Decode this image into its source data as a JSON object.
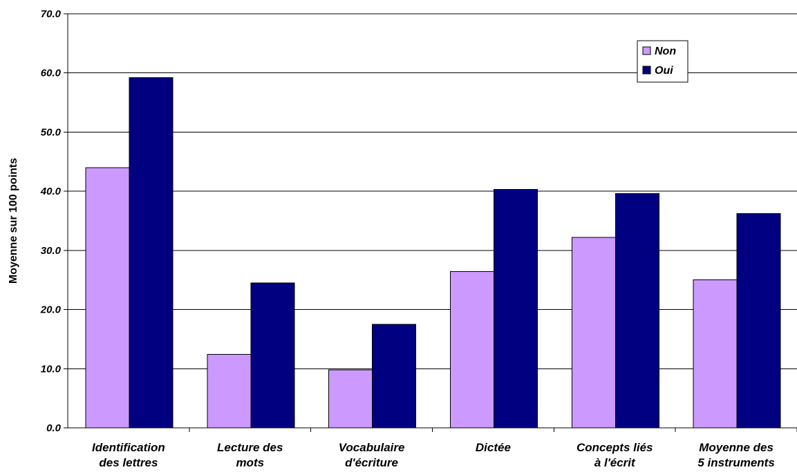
{
  "chart_data": {
    "type": "bar",
    "categories": [
      [
        "Identification",
        "des lettres"
      ],
      [
        "Lecture des",
        "mots"
      ],
      [
        "Vocabulaire",
        "d'écriture"
      ],
      [
        "Dictée"
      ],
      [
        "Concepts liés",
        "à l'écrit"
      ],
      [
        "Moyenne des",
        "5 instruments"
      ]
    ],
    "series": [
      {
        "name": "Non",
        "values": [
          44.0,
          12.4,
          9.8,
          26.4,
          32.2,
          25.0
        ]
      },
      {
        "name": "Oui",
        "values": [
          59.2,
          24.5,
          17.5,
          40.3,
          39.6,
          36.2
        ]
      }
    ],
    "colors": {
      "Non": "#cc99ff",
      "Oui": "#000080",
      "grid": "#000000",
      "axis": "#000000"
    },
    "ylabel": "Moyenne sur 100 points",
    "xlabel": "",
    "ylim": [
      0,
      70
    ],
    "yticks": [
      "0.0",
      "10.0",
      "20.0",
      "30.0",
      "40.0",
      "50.0",
      "60.0",
      "70.0"
    ],
    "grid": true,
    "legend": {
      "position": "top-right",
      "entries": [
        "Non",
        "Oui"
      ]
    }
  }
}
